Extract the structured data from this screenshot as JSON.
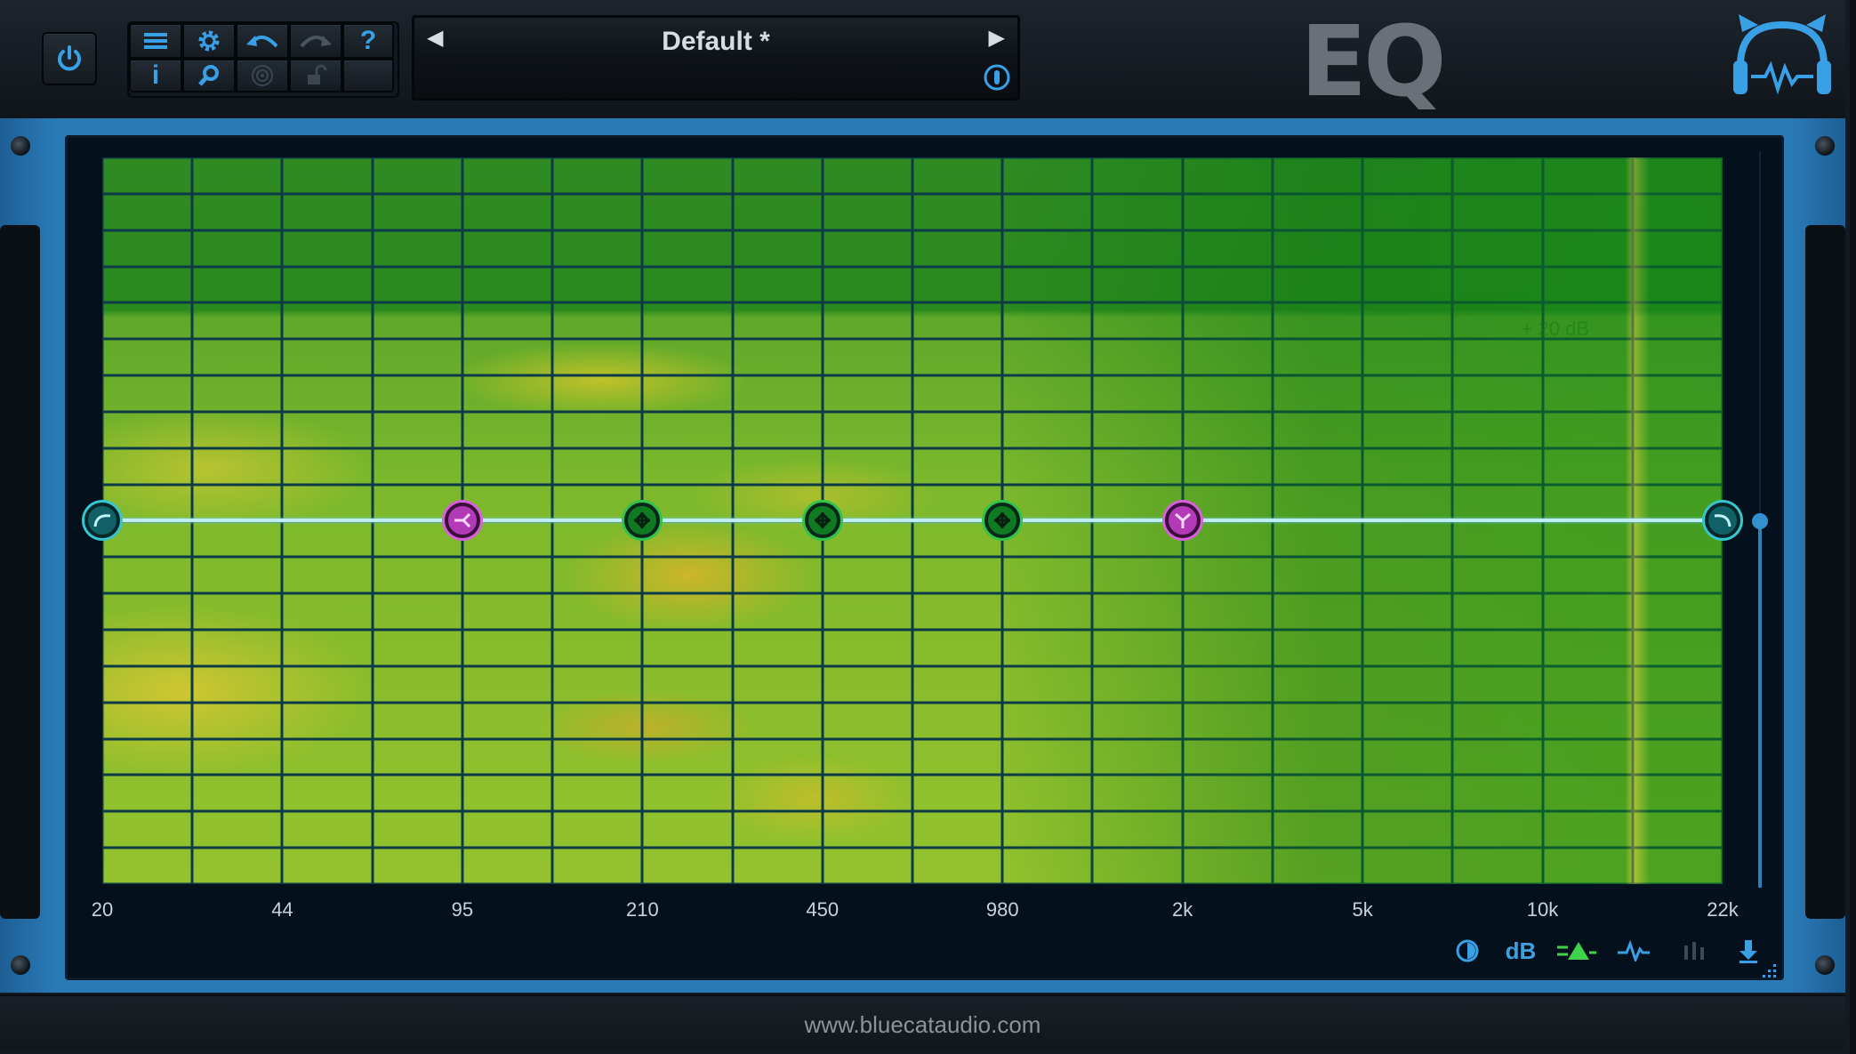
{
  "toolbar": {
    "power": "power-icon",
    "menu": "menu-icon",
    "settings": "gear-icon",
    "undo": "undo-icon",
    "redo": "redo-icon",
    "help": "?",
    "info": "i",
    "zoom": "zoom-icon",
    "target": "target-icon",
    "lock": "lock-icon"
  },
  "preset": {
    "name": "Default *",
    "prev": "◀",
    "next": "▶"
  },
  "logo": {
    "text": "EQ"
  },
  "graph": {
    "db_readout": "+ 20 dB",
    "x_labels": [
      "20",
      "44",
      "95",
      "210",
      "450",
      "980",
      "2k",
      "5k",
      "10k",
      "22k"
    ],
    "nodes": [
      {
        "type": "low-cut",
        "color": "cyan",
        "freq": "20"
      },
      {
        "type": "low-shelf",
        "color": "magenta",
        "freq": "95"
      },
      {
        "type": "peak",
        "color": "green",
        "freq": "210"
      },
      {
        "type": "peak",
        "color": "green",
        "freq": "450"
      },
      {
        "type": "peak",
        "color": "green",
        "freq": "980"
      },
      {
        "type": "high-shelf",
        "color": "magenta",
        "freq": "2k"
      },
      {
        "type": "high-cut",
        "color": "cyan",
        "freq": "22k"
      }
    ]
  },
  "bottom_tools": {
    "dB": "dB"
  },
  "footer": {
    "url": "www.bluecataudio.com"
  },
  "colors": {
    "accent": "#2a7ab8",
    "grid": "#0c3a48",
    "eq_line": "#bfeef2",
    "peak_node": "#33c24a",
    "shelf_node": "#d960dc",
    "cut_node": "#36c6cf"
  }
}
